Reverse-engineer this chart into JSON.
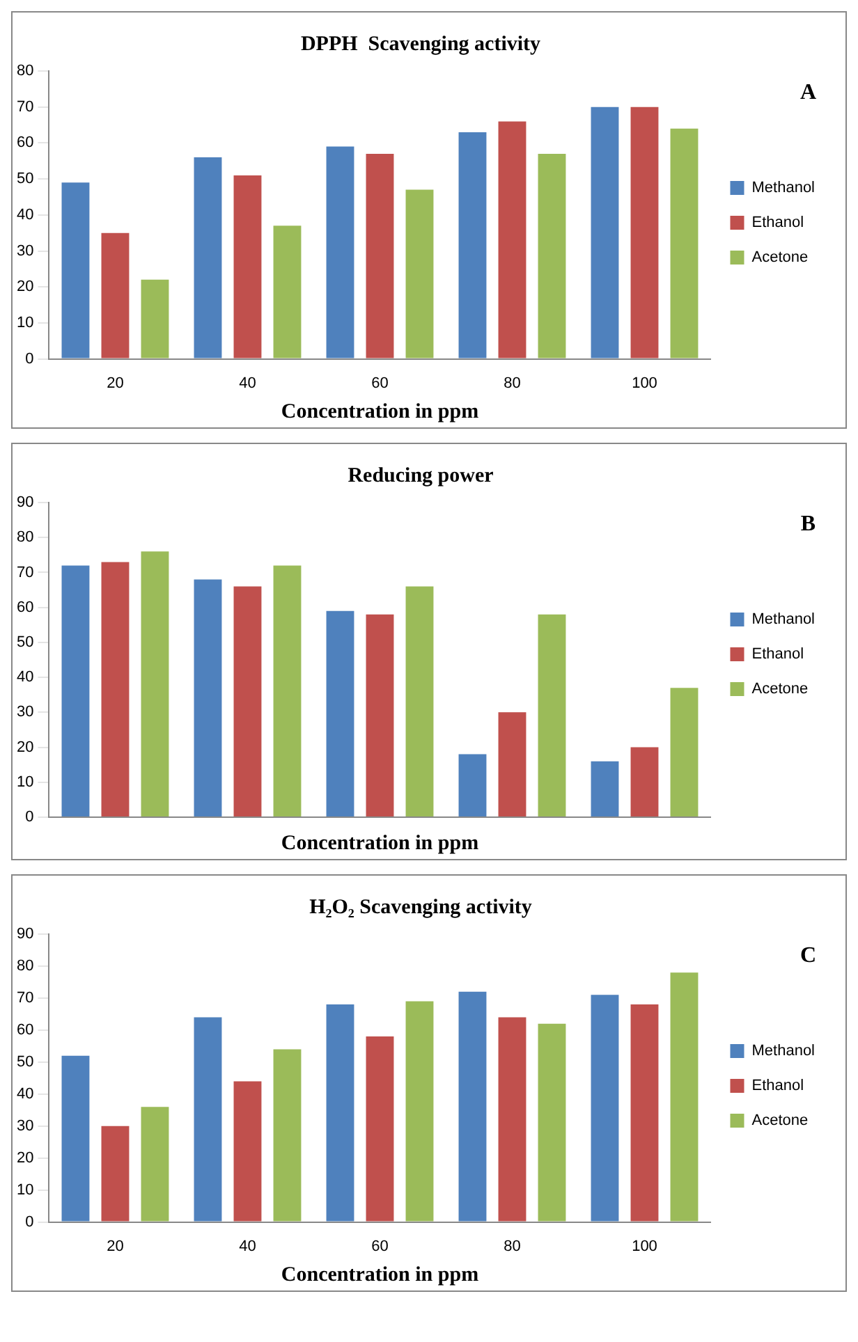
{
  "chart_data": [
    {
      "type": "bar",
      "title": "DPPH  Scavenging activity",
      "xlabel": "Concentration in ppm",
      "annotations": [
        "A"
      ],
      "categories": [
        "20",
        "40",
        "60",
        "80",
        "100"
      ],
      "series": [
        {
          "name": "Methanol",
          "color": "#4f81bd",
          "values": [
            49,
            56,
            59,
            63,
            70
          ]
        },
        {
          "name": "Ethanol",
          "color": "#c0504d",
          "values": [
            35,
            51,
            57,
            66,
            70
          ]
        },
        {
          "name": "Acetone",
          "color": "#9bbb59",
          "values": [
            22,
            37,
            47,
            57,
            64
          ]
        }
      ],
      "ylim": [
        0,
        80
      ],
      "yticks": [
        0,
        10,
        20,
        30,
        40,
        50,
        60,
        70,
        80
      ],
      "grid": false,
      "legend": "right"
    },
    {
      "type": "bar",
      "title": "Reducing power",
      "xlabel": "Concentration in ppm",
      "annotations": [
        "B"
      ],
      "categories": [
        "20",
        "40",
        "60",
        "80",
        "100"
      ],
      "series": [
        {
          "name": "Methanol",
          "color": "#4f81bd",
          "values": [
            72,
            68,
            59,
            18,
            16
          ]
        },
        {
          "name": "Ethanol",
          "color": "#c0504d",
          "values": [
            73,
            66,
            58,
            30,
            20
          ]
        },
        {
          "name": "Acetone",
          "color": "#9bbb59",
          "values": [
            76,
            72,
            66,
            58,
            37
          ]
        }
      ],
      "ylim": [
        0,
        90
      ],
      "yticks": [
        0,
        10,
        20,
        30,
        40,
        50,
        60,
        70,
        80,
        90
      ],
      "grid": false,
      "legend": "right",
      "tick_labels": "y"
    },
    {
      "type": "bar",
      "title": "H₂O₂ Scavenging activity",
      "xlabel": "Concentration in ppm",
      "annotations": [
        "C"
      ],
      "categories": [
        "20",
        "40",
        "60",
        "80",
        "100"
      ],
      "series": [
        {
          "name": "Methanol",
          "color": "#4f81bd",
          "values": [
            52,
            64,
            68,
            72,
            71
          ]
        },
        {
          "name": "Ethanol",
          "color": "#c0504d",
          "values": [
            30,
            44,
            58,
            64,
            68
          ]
        },
        {
          "name": "Acetone",
          "color": "#9bbb59",
          "values": [
            36,
            54,
            69,
            62,
            78
          ]
        }
      ],
      "ylim": [
        0,
        90
      ],
      "yticks": [
        0,
        10,
        20,
        30,
        40,
        50,
        60,
        70,
        80,
        90
      ],
      "grid": false,
      "legend": "right"
    }
  ]
}
